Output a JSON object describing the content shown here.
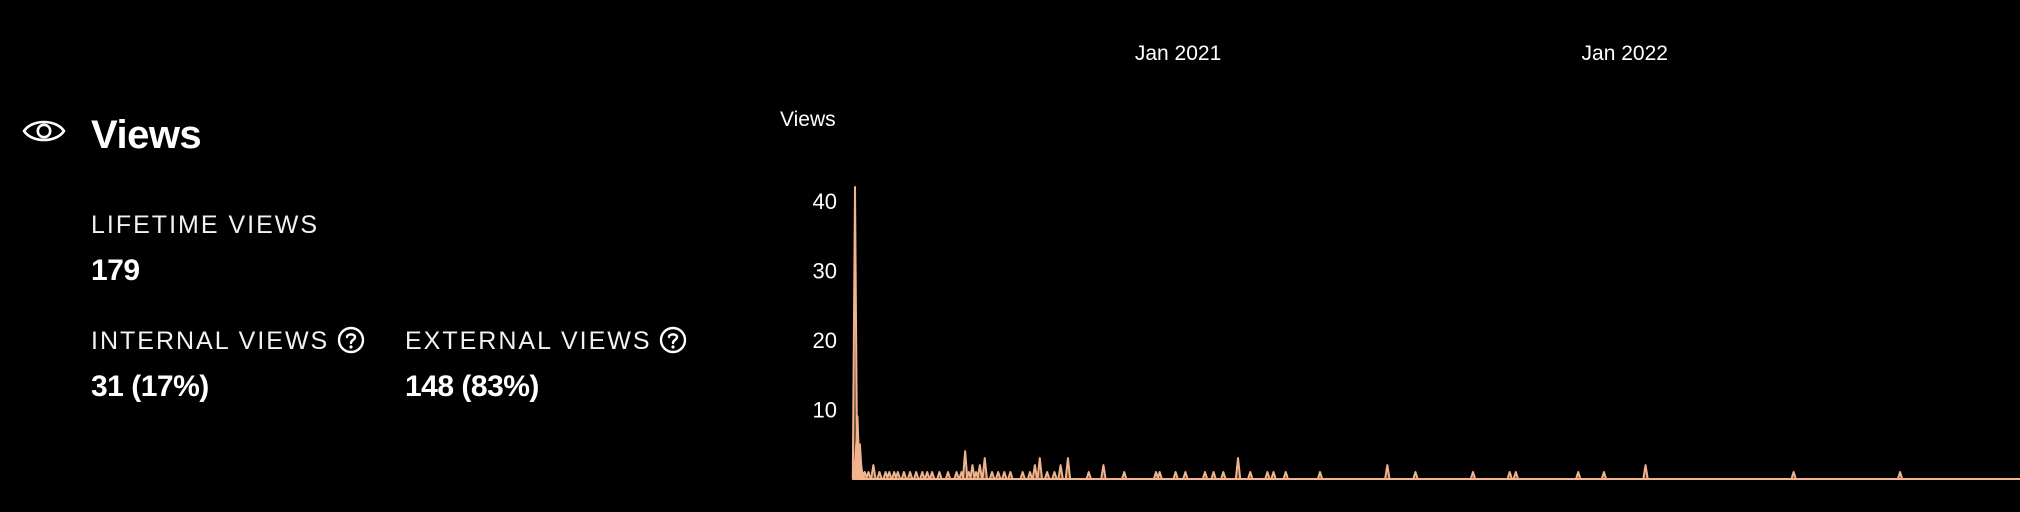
{
  "panel": {
    "title": "Views",
    "icon": "eye-icon",
    "lifetime": {
      "label": "LIFETIME VIEWS",
      "value": "179"
    },
    "internal": {
      "label": "INTERNAL VIEWS",
      "value": "31 (17%)",
      "help_icon": "question-circle-icon"
    },
    "external": {
      "label": "EXTERNAL VIEWS",
      "value": "148 (83%)",
      "help_icon": "question-circle-icon"
    }
  },
  "colors": {
    "background": "#000000",
    "text": "#ffffff",
    "series": "#f2b48c"
  },
  "chart_data": {
    "type": "area",
    "title": "",
    "xlabel": "",
    "ylabel": "Views",
    "x_range": [
      "2020-04-12",
      "2022-11-20"
    ],
    "ylim": [
      0,
      42
    ],
    "yticks": [
      10,
      20,
      30,
      40
    ],
    "xticks": [
      {
        "label": "Jan 2021",
        "date": "2021-01-01"
      },
      {
        "label": "Jan 2022",
        "date": "2022-01-01"
      }
    ],
    "grid": false,
    "legend": "none",
    "series": [
      {
        "values": [
          [
            "2020-04-12",
            42
          ],
          [
            "2020-04-13",
            5
          ],
          [
            "2020-04-14",
            9
          ],
          [
            "2020-04-15",
            4
          ],
          [
            "2020-04-16",
            5
          ],
          [
            "2020-04-17",
            2
          ],
          [
            "2020-04-18",
            1
          ],
          [
            "2020-04-20",
            1
          ],
          [
            "2020-04-23",
            1
          ],
          [
            "2020-04-27",
            2
          ],
          [
            "2020-05-02",
            1
          ],
          [
            "2020-05-07",
            1
          ],
          [
            "2020-05-10",
            1
          ],
          [
            "2020-05-14",
            1
          ],
          [
            "2020-05-17",
            1
          ],
          [
            "2020-05-22",
            1
          ],
          [
            "2020-05-27",
            1
          ],
          [
            "2020-06-01",
            1
          ],
          [
            "2020-06-06",
            1
          ],
          [
            "2020-06-10",
            1
          ],
          [
            "2020-06-14",
            1
          ],
          [
            "2020-06-20",
            1
          ],
          [
            "2020-06-27",
            1
          ],
          [
            "2020-07-04",
            1
          ],
          [
            "2020-07-08",
            1
          ],
          [
            "2020-07-11",
            4
          ],
          [
            "2020-07-14",
            1
          ],
          [
            "2020-07-17",
            2
          ],
          [
            "2020-07-20",
            1
          ],
          [
            "2020-07-23",
            2
          ],
          [
            "2020-07-27",
            3
          ],
          [
            "2020-08-02",
            1
          ],
          [
            "2020-08-07",
            1
          ],
          [
            "2020-08-12",
            1
          ],
          [
            "2020-08-17",
            1
          ],
          [
            "2020-08-27",
            1
          ],
          [
            "2020-09-02",
            1
          ],
          [
            "2020-09-06",
            2
          ],
          [
            "2020-09-10",
            3
          ],
          [
            "2020-09-16",
            1
          ],
          [
            "2020-09-22",
            1
          ],
          [
            "2020-09-27",
            2
          ],
          [
            "2020-10-03",
            3
          ],
          [
            "2020-10-20",
            1
          ],
          [
            "2020-11-01",
            2
          ],
          [
            "2020-11-18",
            1
          ],
          [
            "2020-12-14",
            1
          ],
          [
            "2020-12-17",
            1
          ],
          [
            "2020-12-30",
            1
          ],
          [
            "2021-01-07",
            1
          ],
          [
            "2021-01-23",
            1
          ],
          [
            "2021-01-30",
            1
          ],
          [
            "2021-02-07",
            1
          ],
          [
            "2021-02-19",
            3
          ],
          [
            "2021-03-01",
            1
          ],
          [
            "2021-03-15",
            1
          ],
          [
            "2021-03-20",
            1
          ],
          [
            "2021-03-30",
            1
          ],
          [
            "2021-04-27",
            1
          ],
          [
            "2021-06-21",
            2
          ],
          [
            "2021-07-14",
            1
          ],
          [
            "2021-08-30",
            1
          ],
          [
            "2021-09-29",
            1
          ],
          [
            "2021-10-04",
            1
          ],
          [
            "2021-11-24",
            1
          ],
          [
            "2021-12-15",
            1
          ],
          [
            "2022-01-18",
            2
          ],
          [
            "2022-05-19",
            1
          ],
          [
            "2022-08-14",
            1
          ]
        ]
      }
    ]
  }
}
